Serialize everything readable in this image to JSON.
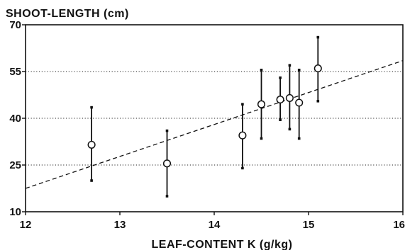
{
  "chart_data": {
    "type": "scatter",
    "title": "",
    "ylabel": "SHOOT-LENGTH (cm)",
    "xlabel": "LEAF-CONTENT K (g/kg)",
    "xlim": [
      12,
      16
    ],
    "ylim": [
      10,
      70
    ],
    "x_ticks": [
      "12",
      "13",
      "14",
      "15",
      "16"
    ],
    "y_ticks": [
      "10",
      "25",
      "40",
      "55",
      "70"
    ],
    "grid": "horizontal-dotted",
    "points": [
      {
        "x": 12.7,
        "y": 31.5,
        "low": 20.0,
        "high": 43.5
      },
      {
        "x": 13.5,
        "y": 25.5,
        "low": 15.0,
        "high": 36.0
      },
      {
        "x": 14.3,
        "y": 34.5,
        "low": 24.0,
        "high": 44.5
      },
      {
        "x": 14.5,
        "y": 44.5,
        "low": 33.5,
        "high": 55.5
      },
      {
        "x": 14.7,
        "y": 46.0,
        "low": 39.5,
        "high": 53.0
      },
      {
        "x": 14.8,
        "y": 46.5,
        "low": 36.5,
        "high": 57.0
      },
      {
        "x": 14.9,
        "y": 45.0,
        "low": 33.5,
        "high": 55.5
      },
      {
        "x": 15.1,
        "y": 56.0,
        "low": 45.5,
        "high": 66.0
      }
    ],
    "trendline": {
      "x": [
        12,
        16
      ],
      "y": [
        17.5,
        58.5
      ],
      "style": "dashed"
    }
  }
}
